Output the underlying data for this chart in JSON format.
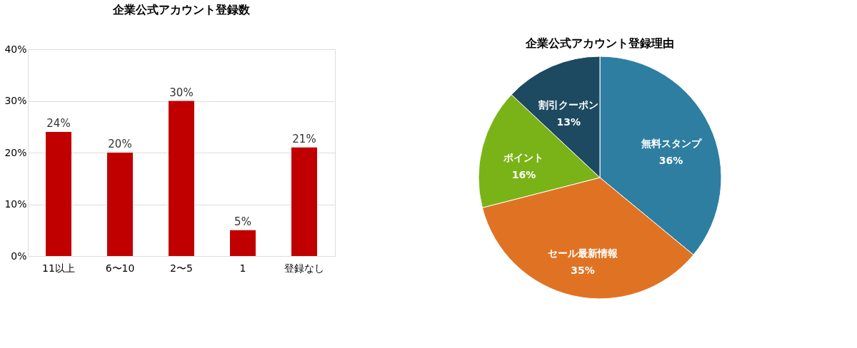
{
  "chart_data": [
    {
      "type": "bar",
      "title": "企業公式アカウント登録数",
      "categories": [
        "11以上",
        "6〜10",
        "2〜5",
        "1",
        "登録なし"
      ],
      "values": [
        24,
        20,
        30,
        5,
        21
      ],
      "color": "#c00000",
      "value_labels": [
        "24%",
        "20%",
        "30%",
        "5%",
        "21%"
      ],
      "ylim": [
        0,
        40
      ],
      "yticks": [
        {
          "value": 0,
          "label": "0%"
        },
        {
          "value": 10,
          "label": "10%"
        },
        {
          "value": 20,
          "label": "20%"
        },
        {
          "value": 30,
          "label": "30%"
        },
        {
          "value": 40,
          "label": "40%"
        }
      ],
      "grid": true
    },
    {
      "type": "pie",
      "title": "企業公式アカウント登録理由",
      "categories": [
        "無料スタンプ",
        "セール最新情報",
        "ポイント",
        "割引クーポン"
      ],
      "values": [
        36,
        35,
        16,
        13
      ],
      "colors": [
        "#2e7ea1",
        "#e07323",
        "#7ab317",
        "#1d4a61"
      ],
      "value_labels": [
        "36%",
        "35%",
        "16%",
        "13%"
      ]
    }
  ]
}
